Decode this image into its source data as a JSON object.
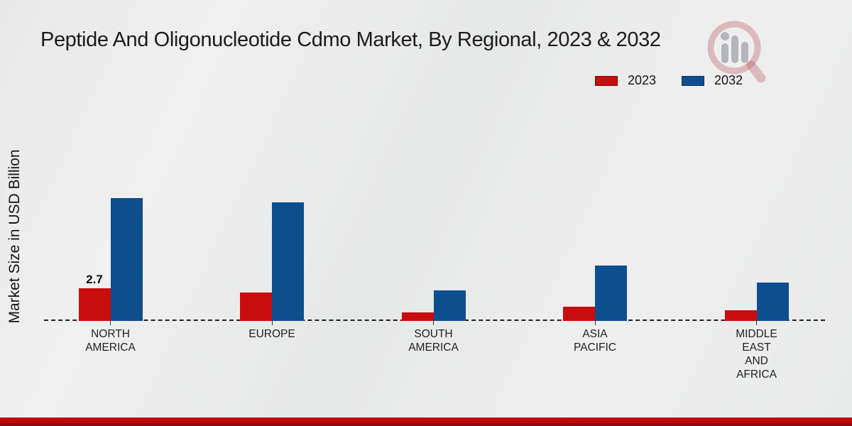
{
  "header": {
    "title": "Peptide And Oligonucleotide Cdmo Market, By Regional, 2023 & 2032"
  },
  "y_axis": {
    "label": "Market Size in USD Billion"
  },
  "legend": {
    "position": "top-right",
    "items": [
      {
        "label": "2023",
        "color": "#c80d0e"
      },
      {
        "label": "2032",
        "color": "#0d4e8f"
      }
    ]
  },
  "chart_data": {
    "type": "bar",
    "title": "Peptide And Oligonucleotide Cdmo Market, By Regional, 2023 & 2032",
    "xlabel": "",
    "ylabel": "Market Size in USD Billion",
    "ylim": [
      0,
      12
    ],
    "grid": false,
    "legend_position": "top-right",
    "baseline_style": "dashed",
    "categories": [
      "NORTH\nAMERICA",
      "EUROPE",
      "SOUTH\nAMERICA",
      "ASIA\nPACIFIC",
      "MIDDLE\nEAST\nAND\nAFRICA"
    ],
    "series": [
      {
        "name": "2023",
        "color": "#c80d0e",
        "values": [
          2.7,
          2.35,
          0.7,
          1.2,
          0.9
        ],
        "data_labels": [
          "2.7",
          "",
          "",
          "",
          ""
        ]
      },
      {
        "name": "2032",
        "color": "#0d4e8f",
        "values": [
          10.2,
          9.8,
          2.5,
          4.6,
          3.2
        ],
        "data_labels": [
          "",
          "",
          "",
          "",
          ""
        ]
      }
    ]
  },
  "watermark": {
    "icon": "magnifier-bar-chart-logo"
  },
  "footer": {
    "band_color": "#c90d0f"
  }
}
